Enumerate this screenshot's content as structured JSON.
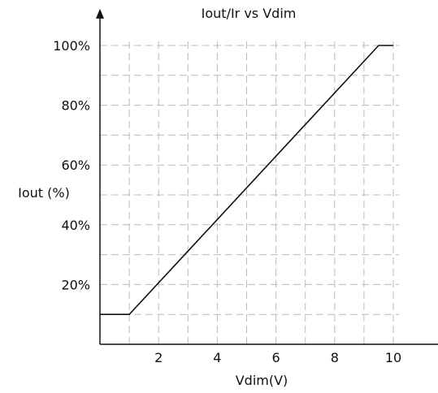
{
  "chart_data": {
    "type": "line",
    "title": "Iout/Ir vs Vdim",
    "xlabel": "Vdim(V)",
    "ylabel": "Iout (%)",
    "xlim": [
      0,
      10.5
    ],
    "ylim": [
      0,
      105
    ],
    "grid": true,
    "x_ticks": [
      2,
      4,
      6,
      8,
      10
    ],
    "x_tick_labels": [
      "2",
      "4",
      "6",
      "8",
      "10"
    ],
    "y_ticks": [
      20,
      40,
      60,
      80,
      100
    ],
    "y_tick_labels": [
      "20%",
      "40%",
      "60%",
      "80%",
      "100%"
    ],
    "series": [
      {
        "x": [
          0,
          1,
          9.5,
          10
        ],
        "y": [
          10,
          10,
          100,
          100
        ]
      }
    ],
    "colors": {
      "line": "#111111",
      "grid": "#bbbbbb",
      "axis": "#111111"
    }
  }
}
